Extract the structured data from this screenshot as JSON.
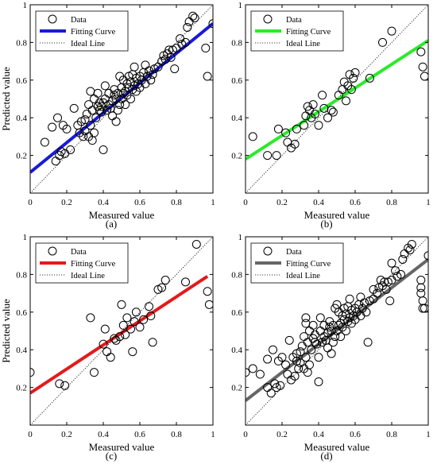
{
  "chart_data": [
    {
      "type": "scatter",
      "panel_label": "(a)",
      "xlabel": "Measured value",
      "ylabel": "Predicted value",
      "xlim": [
        0,
        1
      ],
      "ylim": [
        0,
        1
      ],
      "xticks": [
        "0",
        "0.2",
        "0.4",
        "0.6",
        "0.8",
        "1"
      ],
      "yticks": [
        "0.2",
        "0.4",
        "0.6",
        "0.8",
        "1"
      ],
      "legend": {
        "position": "top-left",
        "entries": [
          "Data",
          "Fitting Curve",
          "Ideal Line"
        ]
      },
      "fit_color": "#1a1ad6",
      "fit_line": [
        [
          0,
          0.11
        ],
        [
          1,
          0.9
        ]
      ],
      "ideal_line": [
        [
          0,
          0
        ],
        [
          1,
          1
        ]
      ],
      "points": [
        [
          0.08,
          0.27
        ],
        [
          0.12,
          0.35
        ],
        [
          0.14,
          0.17
        ],
        [
          0.15,
          0.4
        ],
        [
          0.16,
          0.2
        ],
        [
          0.17,
          0.22
        ],
        [
          0.18,
          0.36
        ],
        [
          0.19,
          0.21
        ],
        [
          0.2,
          0.34
        ],
        [
          0.22,
          0.23
        ],
        [
          0.24,
          0.45
        ],
        [
          0.26,
          0.36
        ],
        [
          0.27,
          0.32
        ],
        [
          0.28,
          0.38
        ],
        [
          0.29,
          0.3
        ],
        [
          0.3,
          0.33
        ],
        [
          0.3,
          0.39
        ],
        [
          0.31,
          0.42
        ],
        [
          0.32,
          0.3
        ],
        [
          0.32,
          0.47
        ],
        [
          0.33,
          0.36
        ],
        [
          0.33,
          0.54
        ],
        [
          0.34,
          0.28
        ],
        [
          0.34,
          0.44
        ],
        [
          0.35,
          0.32
        ],
        [
          0.35,
          0.5
        ],
        [
          0.36,
          0.4
        ],
        [
          0.37,
          0.46
        ],
        [
          0.37,
          0.53
        ],
        [
          0.38,
          0.44
        ],
        [
          0.38,
          0.48
        ],
        [
          0.39,
          0.43
        ],
        [
          0.39,
          0.46
        ],
        [
          0.4,
          0.23
        ],
        [
          0.4,
          0.48
        ],
        [
          0.41,
          0.5
        ],
        [
          0.41,
          0.57
        ],
        [
          0.42,
          0.44
        ],
        [
          0.43,
          0.47
        ],
        [
          0.43,
          0.53
        ],
        [
          0.44,
          0.45
        ],
        [
          0.45,
          0.49
        ],
        [
          0.45,
          0.41
        ],
        [
          0.46,
          0.52
        ],
        [
          0.46,
          0.55
        ],
        [
          0.47,
          0.38
        ],
        [
          0.47,
          0.5
        ],
        [
          0.48,
          0.53
        ],
        [
          0.48,
          0.44
        ],
        [
          0.49,
          0.47
        ],
        [
          0.49,
          0.62
        ],
        [
          0.5,
          0.5
        ],
        [
          0.5,
          0.56
        ],
        [
          0.51,
          0.53
        ],
        [
          0.51,
          0.6
        ],
        [
          0.52,
          0.54
        ],
        [
          0.52,
          0.47
        ],
        [
          0.53,
          0.58
        ],
        [
          0.53,
          0.52
        ],
        [
          0.54,
          0.56
        ],
        [
          0.54,
          0.62
        ],
        [
          0.55,
          0.5
        ],
        [
          0.55,
          0.59
        ],
        [
          0.56,
          0.55
        ],
        [
          0.56,
          0.63
        ],
        [
          0.57,
          0.57
        ],
        [
          0.57,
          0.67
        ],
        [
          0.58,
          0.54
        ],
        [
          0.58,
          0.61
        ],
        [
          0.59,
          0.58
        ],
        [
          0.6,
          0.62
        ],
        [
          0.6,
          0.56
        ],
        [
          0.61,
          0.6
        ],
        [
          0.62,
          0.64
        ],
        [
          0.63,
          0.58
        ],
        [
          0.63,
          0.68
        ],
        [
          0.64,
          0.62
        ],
        [
          0.65,
          0.65
        ],
        [
          0.66,
          0.6
        ],
        [
          0.67,
          0.63
        ],
        [
          0.68,
          0.66
        ],
        [
          0.7,
          0.67
        ],
        [
          0.72,
          0.7
        ],
        [
          0.73,
          0.73
        ],
        [
          0.74,
          0.71
        ],
        [
          0.75,
          0.74
        ],
        [
          0.76,
          0.76
        ],
        [
          0.77,
          0.72
        ],
        [
          0.78,
          0.76
        ],
        [
          0.79,
          0.66
        ],
        [
          0.8,
          0.77
        ],
        [
          0.82,
          0.82
        ],
        [
          0.83,
          0.79
        ],
        [
          0.85,
          0.8
        ],
        [
          0.86,
          0.88
        ],
        [
          0.87,
          0.91
        ],
        [
          0.89,
          0.94
        ],
        [
          0.9,
          0.93
        ],
        [
          0.96,
          0.77
        ],
        [
          0.97,
          0.62
        ],
        [
          1.0,
          0.9
        ]
      ]
    },
    {
      "type": "scatter",
      "panel_label": "(b)",
      "xlabel": "Measured value",
      "ylabel": "",
      "xlim": [
        0,
        1
      ],
      "ylim": [
        0,
        1
      ],
      "xticks": [
        "0",
        "0.2",
        "0.4",
        "0.6",
        "0.8",
        "1"
      ],
      "yticks": [
        "0.2",
        "0.4",
        "0.6",
        "0.8",
        "1"
      ],
      "legend": {
        "position": "top-left",
        "entries": [
          "Data",
          "Fitting Curve",
          "Ideal Line"
        ]
      },
      "fit_color": "#2bea2b",
      "fit_line": [
        [
          0,
          0.18
        ],
        [
          1,
          0.81
        ]
      ],
      "ideal_line": [
        [
          0,
          0
        ],
        [
          1,
          1
        ]
      ],
      "points": [
        [
          0.04,
          0.3
        ],
        [
          0.12,
          0.2
        ],
        [
          0.17,
          0.2
        ],
        [
          0.18,
          0.34
        ],
        [
          0.22,
          0.32
        ],
        [
          0.23,
          0.27
        ],
        [
          0.25,
          0.24
        ],
        [
          0.27,
          0.26
        ],
        [
          0.28,
          0.34
        ],
        [
          0.32,
          0.36
        ],
        [
          0.33,
          0.41
        ],
        [
          0.34,
          0.46
        ],
        [
          0.35,
          0.44
        ],
        [
          0.36,
          0.4
        ],
        [
          0.37,
          0.47
        ],
        [
          0.38,
          0.42
        ],
        [
          0.4,
          0.36
        ],
        [
          0.42,
          0.52
        ],
        [
          0.43,
          0.45
        ],
        [
          0.45,
          0.4
        ],
        [
          0.47,
          0.44
        ],
        [
          0.48,
          0.43
        ],
        [
          0.51,
          0.52
        ],
        [
          0.53,
          0.55
        ],
        [
          0.54,
          0.59
        ],
        [
          0.55,
          0.49
        ],
        [
          0.56,
          0.57
        ],
        [
          0.57,
          0.63
        ],
        [
          0.58,
          0.55
        ],
        [
          0.59,
          0.61
        ],
        [
          0.6,
          0.64
        ],
        [
          0.68,
          0.61
        ],
        [
          0.75,
          0.8
        ],
        [
          0.8,
          0.86
        ],
        [
          0.96,
          0.75
        ],
        [
          0.97,
          0.67
        ],
        [
          0.98,
          0.62
        ]
      ]
    },
    {
      "type": "scatter",
      "panel_label": "(c)",
      "xlabel": "Measured value",
      "ylabel": "Predicted value",
      "xlim": [
        0,
        1
      ],
      "ylim": [
        0,
        1
      ],
      "xticks": [
        "0",
        "0.2",
        "0.4",
        "0.6",
        "0.8",
        "1"
      ],
      "yticks": [
        "0.2",
        "0.4",
        "0.6",
        "0.8",
        "1"
      ],
      "legend": {
        "position": "top-left",
        "entries": [
          "Data",
          "Fitting Curve",
          "Ideal Line"
        ]
      },
      "fit_color": "#e41a1a",
      "fit_line": [
        [
          0,
          0.17
        ],
        [
          0.97,
          0.79
        ]
      ],
      "ideal_line": [
        [
          0,
          0
        ],
        [
          1,
          1
        ]
      ],
      "points": [
        [
          0.0,
          0.28
        ],
        [
          0.16,
          0.22
        ],
        [
          0.19,
          0.21
        ],
        [
          0.33,
          0.57
        ],
        [
          0.35,
          0.28
        ],
        [
          0.4,
          0.43
        ],
        [
          0.41,
          0.51
        ],
        [
          0.42,
          0.39
        ],
        [
          0.44,
          0.36
        ],
        [
          0.46,
          0.46
        ],
        [
          0.47,
          0.45
        ],
        [
          0.49,
          0.47
        ],
        [
          0.5,
          0.64
        ],
        [
          0.51,
          0.53
        ],
        [
          0.52,
          0.48
        ],
        [
          0.53,
          0.57
        ],
        [
          0.55,
          0.51
        ],
        [
          0.56,
          0.39
        ],
        [
          0.57,
          0.55
        ],
        [
          0.58,
          0.6
        ],
        [
          0.6,
          0.52
        ],
        [
          0.62,
          0.56
        ],
        [
          0.65,
          0.63
        ],
        [
          0.66,
          0.58
        ],
        [
          0.67,
          0.44
        ],
        [
          0.7,
          0.72
        ],
        [
          0.72,
          0.73
        ],
        [
          0.74,
          0.77
        ],
        [
          0.85,
          0.76
        ],
        [
          0.91,
          0.96
        ],
        [
          0.97,
          0.71
        ],
        [
          0.98,
          0.64
        ]
      ]
    },
    {
      "type": "scatter",
      "panel_label": "(d)",
      "xlabel": "Measured value",
      "ylabel": "",
      "xlim": [
        0,
        1
      ],
      "ylim": [
        0,
        1
      ],
      "xticks": [
        "0",
        "0.2",
        "0.4",
        "0.6",
        "0.8",
        "1"
      ],
      "yticks": [
        "0.2",
        "0.4",
        "0.6",
        "0.8",
        "1"
      ],
      "legend": {
        "position": "top-left",
        "entries": [
          "Data",
          "Fitting Curve",
          "Ideal Line"
        ]
      },
      "fit_color": "#666666",
      "fit_line": [
        [
          0,
          0.13
        ],
        [
          1,
          0.88
        ]
      ],
      "ideal_line": [
        [
          0,
          0
        ],
        [
          1,
          1
        ]
      ],
      "points": [
        [
          0.0,
          0.28
        ],
        [
          0.04,
          0.3
        ],
        [
          0.08,
          0.27
        ],
        [
          0.12,
          0.35
        ],
        [
          0.12,
          0.2
        ],
        [
          0.14,
          0.17
        ],
        [
          0.15,
          0.4
        ],
        [
          0.16,
          0.22
        ],
        [
          0.17,
          0.2
        ],
        [
          0.18,
          0.34
        ],
        [
          0.19,
          0.21
        ],
        [
          0.2,
          0.36
        ],
        [
          0.22,
          0.32
        ],
        [
          0.23,
          0.27
        ],
        [
          0.24,
          0.45
        ],
        [
          0.25,
          0.24
        ],
        [
          0.26,
          0.36
        ],
        [
          0.27,
          0.26
        ],
        [
          0.28,
          0.34
        ],
        [
          0.28,
          0.38
        ],
        [
          0.29,
          0.3
        ],
        [
          0.3,
          0.33
        ],
        [
          0.3,
          0.39
        ],
        [
          0.31,
          0.42
        ],
        [
          0.32,
          0.3
        ],
        [
          0.32,
          0.47
        ],
        [
          0.33,
          0.36
        ],
        [
          0.33,
          0.57
        ],
        [
          0.33,
          0.54
        ],
        [
          0.34,
          0.28
        ],
        [
          0.34,
          0.44
        ],
        [
          0.35,
          0.32
        ],
        [
          0.35,
          0.5
        ],
        [
          0.36,
          0.4
        ],
        [
          0.37,
          0.46
        ],
        [
          0.37,
          0.53
        ],
        [
          0.38,
          0.44
        ],
        [
          0.38,
          0.48
        ],
        [
          0.39,
          0.43
        ],
        [
          0.4,
          0.23
        ],
        [
          0.4,
          0.36
        ],
        [
          0.41,
          0.5
        ],
        [
          0.41,
          0.57
        ],
        [
          0.42,
          0.44
        ],
        [
          0.43,
          0.47
        ],
        [
          0.43,
          0.53
        ],
        [
          0.44,
          0.45
        ],
        [
          0.45,
          0.49
        ],
        [
          0.45,
          0.41
        ],
        [
          0.46,
          0.52
        ],
        [
          0.46,
          0.55
        ],
        [
          0.47,
          0.38
        ],
        [
          0.47,
          0.5
        ],
        [
          0.48,
          0.53
        ],
        [
          0.48,
          0.44
        ],
        [
          0.49,
          0.47
        ],
        [
          0.49,
          0.62
        ],
        [
          0.5,
          0.5
        ],
        [
          0.5,
          0.64
        ],
        [
          0.51,
          0.53
        ],
        [
          0.51,
          0.6
        ],
        [
          0.52,
          0.54
        ],
        [
          0.52,
          0.47
        ],
        [
          0.53,
          0.58
        ],
        [
          0.53,
          0.52
        ],
        [
          0.54,
          0.56
        ],
        [
          0.54,
          0.62
        ],
        [
          0.55,
          0.5
        ],
        [
          0.55,
          0.59
        ],
        [
          0.56,
          0.55
        ],
        [
          0.56,
          0.63
        ],
        [
          0.57,
          0.57
        ],
        [
          0.57,
          0.67
        ],
        [
          0.58,
          0.54
        ],
        [
          0.58,
          0.61
        ],
        [
          0.59,
          0.58
        ],
        [
          0.6,
          0.62
        ],
        [
          0.6,
          0.56
        ],
        [
          0.61,
          0.6
        ],
        [
          0.62,
          0.64
        ],
        [
          0.63,
          0.58
        ],
        [
          0.63,
          0.68
        ],
        [
          0.64,
          0.62
        ],
        [
          0.65,
          0.65
        ],
        [
          0.66,
          0.6
        ],
        [
          0.67,
          0.44
        ],
        [
          0.68,
          0.66
        ],
        [
          0.7,
          0.67
        ],
        [
          0.7,
          0.72
        ],
        [
          0.72,
          0.7
        ],
        [
          0.73,
          0.73
        ],
        [
          0.74,
          0.77
        ],
        [
          0.75,
          0.74
        ],
        [
          0.76,
          0.76
        ],
        [
          0.77,
          0.72
        ],
        [
          0.78,
          0.76
        ],
        [
          0.79,
          0.66
        ],
        [
          0.8,
          0.77
        ],
        [
          0.8,
          0.86
        ],
        [
          0.82,
          0.82
        ],
        [
          0.83,
          0.79
        ],
        [
          0.85,
          0.8
        ],
        [
          0.86,
          0.88
        ],
        [
          0.87,
          0.91
        ],
        [
          0.89,
          0.94
        ],
        [
          0.9,
          0.93
        ],
        [
          0.91,
          0.96
        ],
        [
          0.96,
          0.77
        ],
        [
          0.96,
          0.73
        ],
        [
          0.96,
          0.7
        ],
        [
          0.97,
          0.66
        ],
        [
          0.97,
          0.62
        ],
        [
          0.98,
          0.62
        ],
        [
          1.0,
          0.9
        ]
      ]
    }
  ]
}
